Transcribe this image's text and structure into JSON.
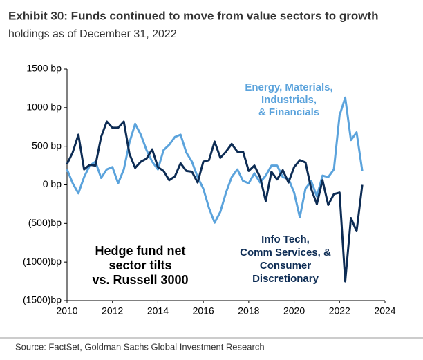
{
  "chart_data": {
    "type": "line",
    "title": "Exhibit 30: Funds continued to move from value sectors to growth",
    "subtitle": "holdings as of December 31, 2022",
    "source": "Source: FactSet, Goldman Sachs Global Investment Research",
    "x": [
      2010,
      2010.25,
      2010.5,
      2010.75,
      2011,
      2011.25,
      2011.5,
      2011.75,
      2012,
      2012.25,
      2012.5,
      2012.75,
      2013,
      2013.25,
      2013.5,
      2013.75,
      2014,
      2014.25,
      2014.5,
      2014.75,
      2015,
      2015.25,
      2015.5,
      2015.75,
      2016,
      2016.25,
      2016.5,
      2016.75,
      2017,
      2017.25,
      2017.5,
      2017.75,
      2018,
      2018.25,
      2018.5,
      2018.75,
      2019,
      2019.25,
      2019.5,
      2019.75,
      2020,
      2020.25,
      2020.5,
      2020.75,
      2021,
      2021.25,
      2021.5,
      2021.75,
      2022,
      2022.25,
      2022.5,
      2022.75,
      2023
    ],
    "series": [
      {
        "name": "Energy, Materials, Industrials, & Financials",
        "color": "#5ba3dc",
        "values": [
          200,
          20,
          -110,
          100,
          250,
          300,
          90,
          200,
          230,
          20,
          200,
          550,
          790,
          650,
          450,
          300,
          200,
          450,
          520,
          620,
          650,
          420,
          300,
          100,
          -50,
          -300,
          -490,
          -350,
          -100,
          100,
          200,
          50,
          20,
          150,
          30,
          120,
          250,
          250,
          100,
          80,
          -100,
          -420,
          -50,
          50,
          -150,
          120,
          100,
          200,
          900,
          1130,
          580,
          680,
          180
        ]
      },
      {
        "name": "Info Tech, Comm Services, & Consumer Discretionary",
        "color": "#0d2c54",
        "values": [
          270,
          420,
          650,
          200,
          260,
          250,
          620,
          820,
          740,
          740,
          820,
          400,
          220,
          300,
          340,
          460,
          230,
          180,
          60,
          110,
          280,
          180,
          170,
          30,
          300,
          320,
          560,
          350,
          430,
          530,
          430,
          430,
          180,
          250,
          100,
          -210,
          170,
          70,
          190,
          30,
          230,
          320,
          290,
          -50,
          -250,
          60,
          -260,
          -120,
          -100,
          -1250,
          -430,
          -600,
          0
        ]
      }
    ],
    "annotations": [
      {
        "lines": [
          "Energy, Materials,",
          "Industrials,",
          "& Financials"
        ],
        "color": "#5ba3dc"
      },
      {
        "lines": [
          "Info Tech,",
          "Comm Services, &",
          "Consumer",
          "Discretionary"
        ],
        "color": "#0d2c54"
      },
      {
        "lines": [
          "Hedge fund net",
          "sector tilts",
          "vs. Russell 3000"
        ],
        "color": "#000000"
      }
    ],
    "xlim": [
      2010,
      2024
    ],
    "xticks": [
      2010,
      2012,
      2014,
      2016,
      2018,
      2020,
      2022,
      2024
    ],
    "ylim": [
      -1500,
      1500
    ],
    "yticks": [
      {
        "value": -1500,
        "label": "(1500)bp"
      },
      {
        "value": -1000,
        "label": "(1000)bp"
      },
      {
        "value": -500,
        "label": "(500)bp"
      },
      {
        "value": 0,
        "label": "0 bp"
      },
      {
        "value": 500,
        "label": "500 bp"
      },
      {
        "value": 1000,
        "label": "1000 bp"
      },
      {
        "value": 1500,
        "label": "1500 bp"
      }
    ]
  }
}
